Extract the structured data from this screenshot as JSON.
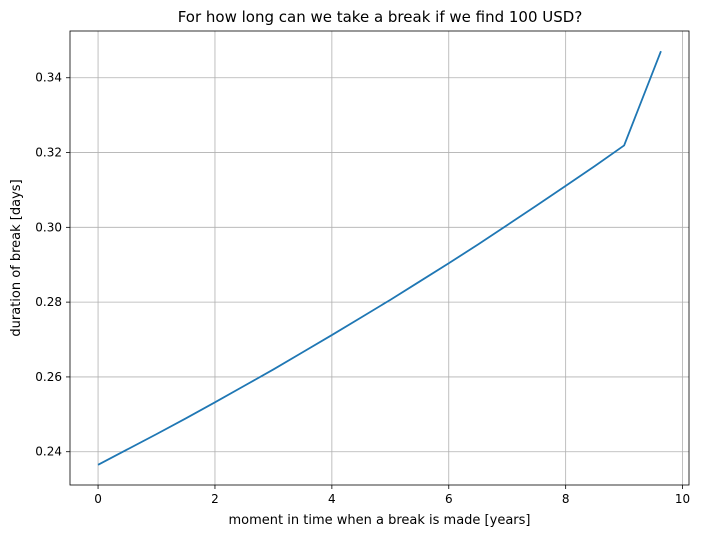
{
  "chart_data": {
    "type": "line",
    "title": "For how long can we take a break if we find 100 USD?",
    "xlabel": "moment in time when a break is made [years]",
    "ylabel": "duration of break [days]",
    "xlim": [
      -0.48,
      10.11
    ],
    "ylim": [
      0.2311,
      0.3525
    ],
    "xticks": [
      0,
      2,
      4,
      6,
      8,
      10
    ],
    "yticks": [
      0.24,
      0.26,
      0.28,
      0.3,
      0.32,
      0.34
    ],
    "xtick_labels": [
      "0",
      "2",
      "4",
      "6",
      "8",
      "10"
    ],
    "ytick_labels": [
      "0.24",
      "0.26",
      "0.28",
      "0.30",
      "0.32",
      "0.34"
    ],
    "grid": true,
    "series": [
      {
        "color": "#1f77b4",
        "x": [
          0,
          0.5,
          1,
          1.5,
          2,
          2.5,
          3,
          3.5,
          4,
          4.5,
          5,
          5.5,
          6,
          6.5,
          7,
          7.5,
          8,
          8.5,
          9,
          9.63
        ],
        "y": [
          0.2365,
          0.2406,
          0.2447,
          0.2489,
          0.2532,
          0.2576,
          0.262,
          0.2666,
          0.2712,
          0.2759,
          0.2806,
          0.2855,
          0.2904,
          0.2954,
          0.3006,
          0.3058,
          0.3111,
          0.3164,
          0.3219,
          0.3471
        ]
      }
    ]
  }
}
